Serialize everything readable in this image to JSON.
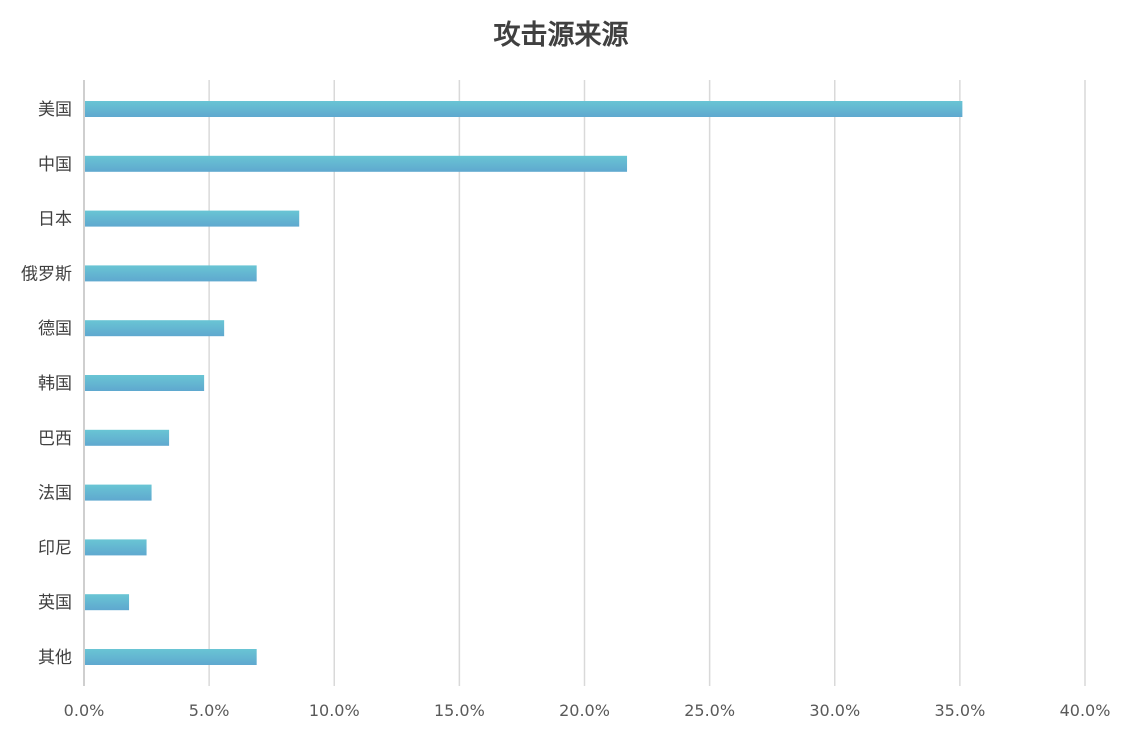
{
  "chart_data": {
    "type": "bar",
    "orientation": "horizontal",
    "title": "攻击源来源",
    "xlabel": "",
    "ylabel": "",
    "categories": [
      "美国",
      "中国",
      "日本",
      "俄罗斯",
      "德国",
      "韩国",
      "巴西",
      "法国",
      "印尼",
      "英国",
      "其他"
    ],
    "values": [
      35.1,
      21.7,
      8.6,
      6.9,
      5.6,
      4.8,
      3.4,
      2.7,
      2.5,
      1.8,
      6.9
    ],
    "value_unit": "%",
    "xlim": [
      0,
      40
    ],
    "xticks": [
      "0.0%",
      "5.0%",
      "10.0%",
      "15.0%",
      "20.0%",
      "25.0%",
      "30.0%",
      "35.0%",
      "40.0%"
    ],
    "grid": true,
    "legend": "none",
    "bar_color_top": "#69c5d4",
    "bar_color_bottom": "#5fa8cf"
  }
}
